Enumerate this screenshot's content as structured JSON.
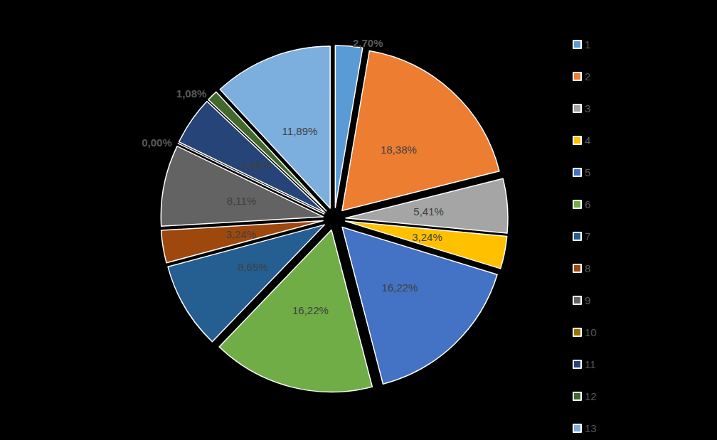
{
  "chart_data": {
    "type": "pie",
    "categories": [
      "1",
      "2",
      "3",
      "4",
      "5",
      "6",
      "7",
      "8",
      "9",
      "10",
      "11",
      "12",
      "13"
    ],
    "values": [
      2.7,
      18.38,
      5.41,
      3.24,
      16.22,
      16.22,
      8.65,
      3.24,
      8.11,
      0.0,
      4.86,
      1.08,
      11.89
    ],
    "value_labels": [
      "2,70%",
      "18,38%",
      "5,41%",
      "3,24%",
      "16,22%",
      "16,22%",
      "8,65%",
      "3,24%",
      "8,11%",
      "0,00%",
      "4,86%",
      "1,08%",
      "11,89%"
    ],
    "colors": [
      "#5b9bd5",
      "#ed7d31",
      "#a5a5a5",
      "#ffc000",
      "#4472c4",
      "#70ad47",
      "#255e91",
      "#9e480e",
      "#636363",
      "#997300",
      "#264478",
      "#43682b",
      "#7cafdd"
    ],
    "data_labels": true,
    "legend": "right"
  }
}
